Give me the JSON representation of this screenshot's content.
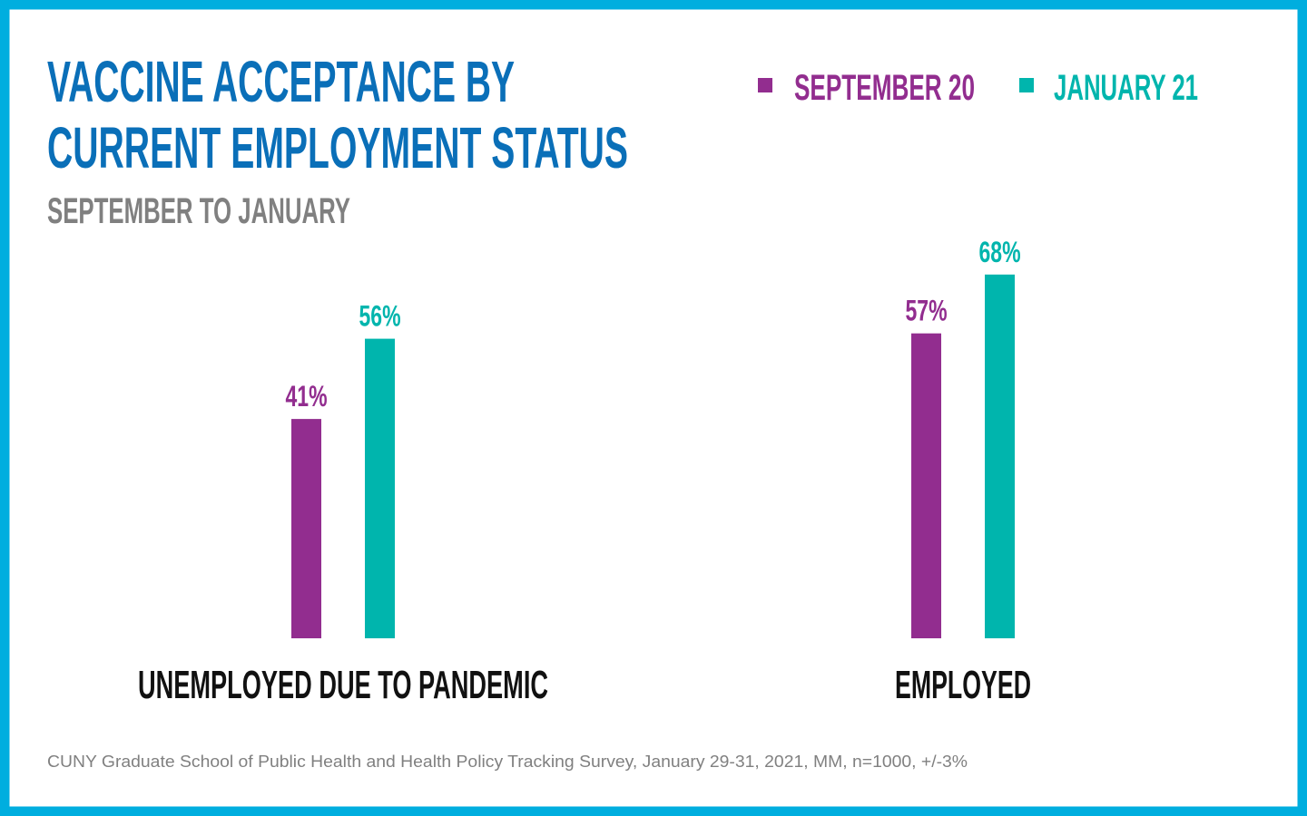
{
  "colors": {
    "border": "#00aedf",
    "title": "#0a6fb8",
    "subtitle": "#808080",
    "september": "#922d8f",
    "january": "#00b5ad",
    "category": "#111111",
    "footer": "#808080"
  },
  "header": {
    "title_line1": "VACCINE ACCEPTANCE BY",
    "title_line2": "CURRENT EMPLOYMENT STATUS",
    "subtitle": "SEPTEMBER TO JANUARY"
  },
  "chart_data": {
    "type": "bar",
    "title": "VACCINE ACCEPTANCE BY CURRENT EMPLOYMENT STATUS",
    "subtitle": "SEPTEMBER TO JANUARY",
    "categories": [
      "UNEMPLOYED DUE TO PANDEMIC",
      "EMPLOYED"
    ],
    "series": [
      {
        "name": "SEPTEMBER 20",
        "values": [
          41,
          57
        ],
        "labels": [
          "41%",
          "57%"
        ],
        "color": "#922d8f"
      },
      {
        "name": "JANUARY 21",
        "values": [
          56,
          68
        ],
        "labels": [
          "56%",
          "68%"
        ],
        "color": "#00b5ad"
      }
    ],
    "ylim": [
      0,
      100
    ],
    "grid": false,
    "axes_visible": false,
    "legend_placement": "top-right"
  },
  "footer": {
    "source": "CUNY Graduate School of Public Health and Health Policy Tracking Survey, January 29-31, 2021, MM, n=1000, +/-3%"
  }
}
